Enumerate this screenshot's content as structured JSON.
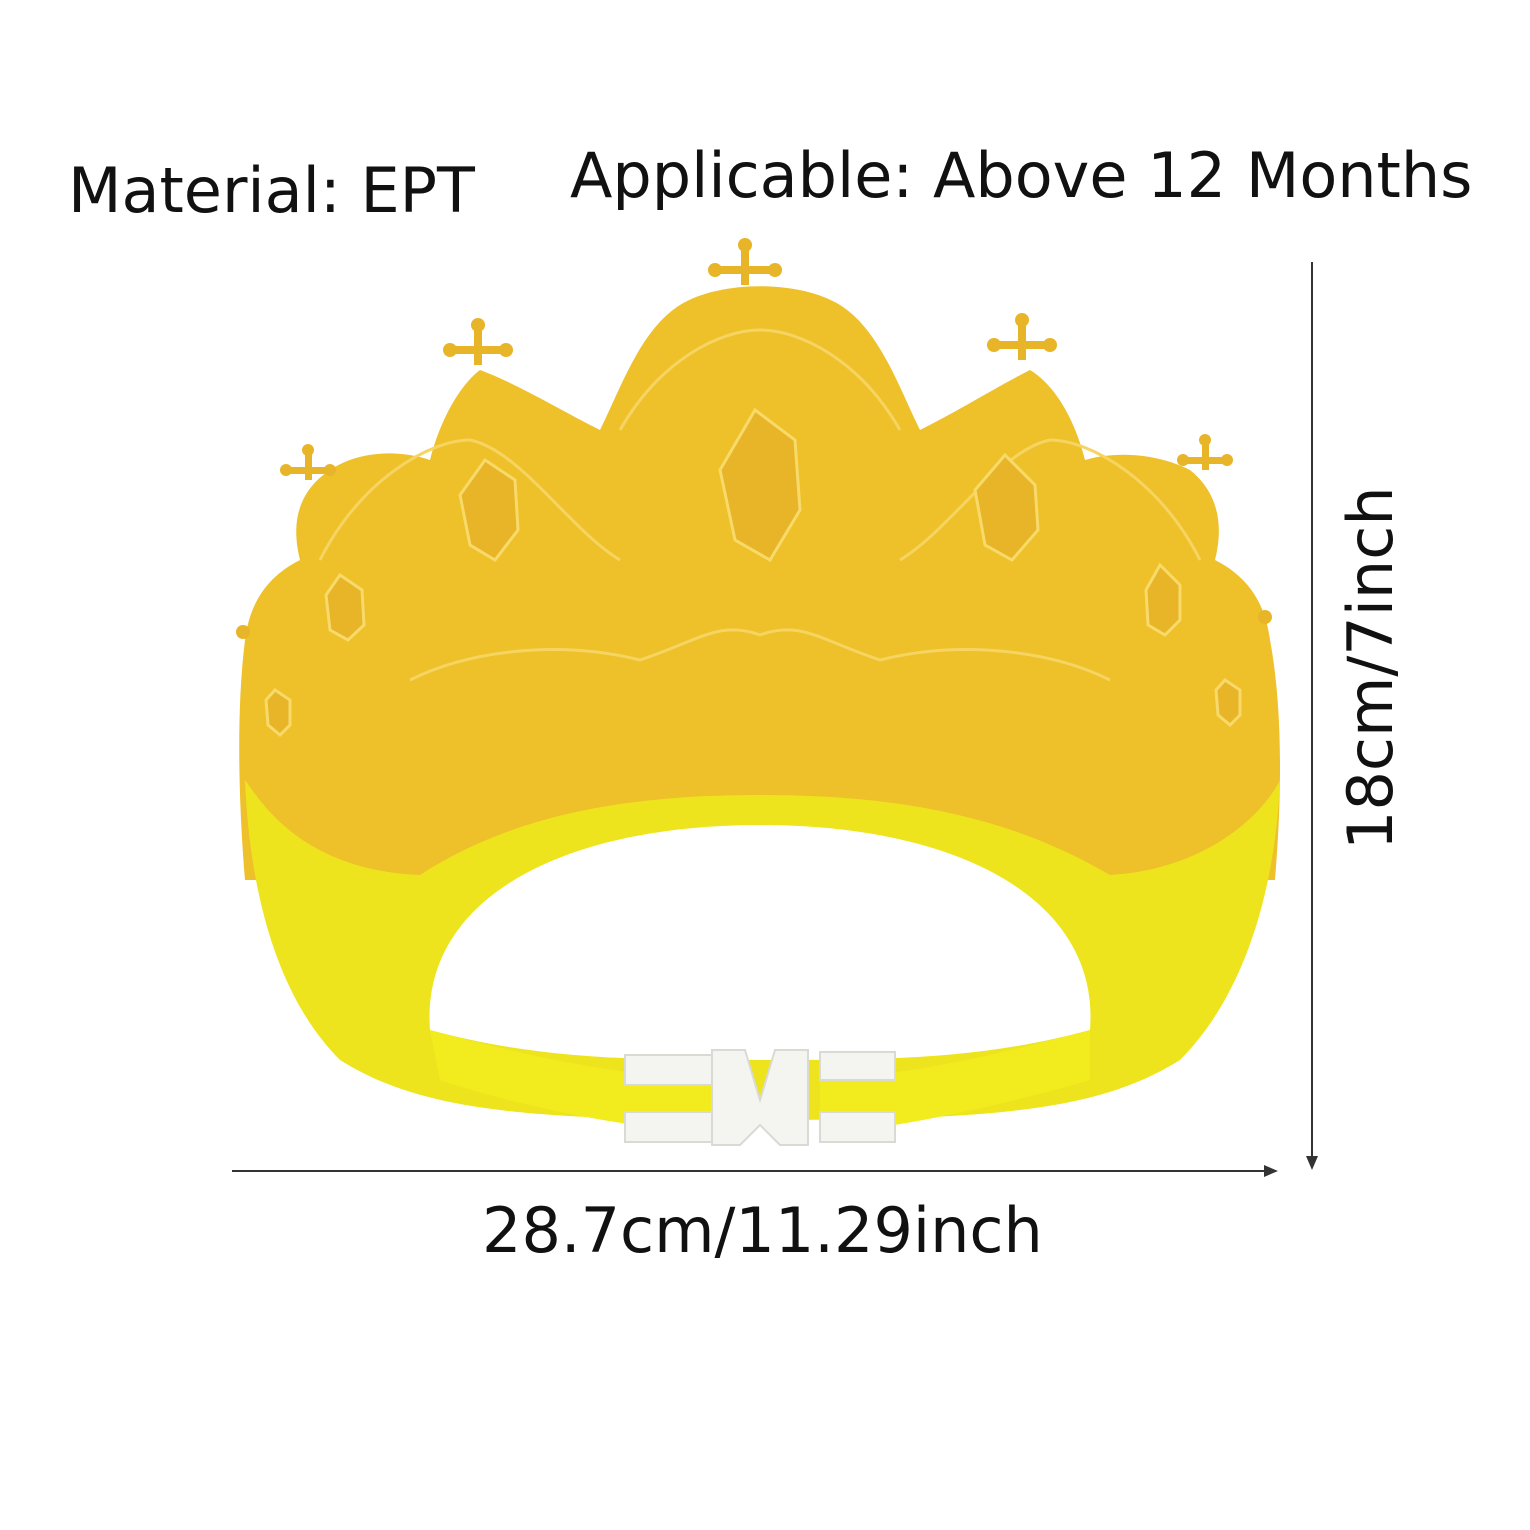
{
  "specs": {
    "material": "Material: EPT",
    "applicable": "Applicable: Above 12 Months"
  },
  "dimensions": {
    "width": "28.7cm/11.29inch",
    "height": "18cm/7inch"
  },
  "product": {
    "name_icon": "crown-shower-cap",
    "colors": {
      "crown": "#EEC02A",
      "crown_shadow": "#E2A91E",
      "band": "#EEE41E",
      "buckle": "#F4F4F0",
      "dimension_line": "#333333"
    }
  }
}
